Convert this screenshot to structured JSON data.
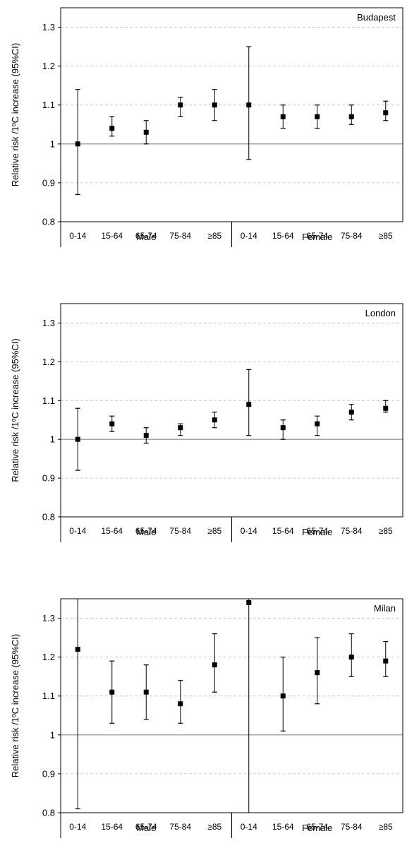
{
  "chart_data": [
    {
      "type": "scatter",
      "title": "Budapest",
      "ylabel": "Relative risk /1ºC increase (95%CI)",
      "ylim": [
        0.8,
        1.35
      ],
      "yticks": [
        "0.8",
        "0.9",
        "1",
        "1.1",
        "1.2",
        "1.3"
      ],
      "grid": true,
      "reference_line": 1,
      "groups": [
        "Male",
        "Female"
      ],
      "categories": [
        "0-14",
        "15-64",
        "65-74",
        "75-84",
        "≥85",
        "0-14",
        "15-64",
        "65-74",
        "75-84",
        "≥85"
      ],
      "values": [
        1.0,
        1.04,
        1.03,
        1.1,
        1.1,
        1.1,
        1.07,
        1.07,
        1.07,
        1.08
      ],
      "ci_low": [
        0.87,
        1.02,
        1.0,
        1.07,
        1.06,
        0.96,
        1.04,
        1.04,
        1.05,
        1.06
      ],
      "ci_high": [
        1.14,
        1.07,
        1.06,
        1.12,
        1.14,
        1.25,
        1.1,
        1.1,
        1.1,
        1.11
      ]
    },
    {
      "type": "scatter",
      "title": "London",
      "ylabel": "Relative risk /1ºC increase (95%CI)",
      "ylim": [
        0.8,
        1.35
      ],
      "yticks": [
        "0.8",
        "0.9",
        "1",
        "1.1",
        "1.2",
        "1.3"
      ],
      "grid": true,
      "reference_line": 1,
      "groups": [
        "Male",
        "Female"
      ],
      "categories": [
        "0-14",
        "15-64",
        "65-74",
        "75-84",
        "≥85",
        "0-14",
        "15-64",
        "65-74",
        "75-84",
        "≥85"
      ],
      "values": [
        1.0,
        1.04,
        1.01,
        1.03,
        1.05,
        1.09,
        1.03,
        1.04,
        1.07,
        1.08
      ],
      "ci_low": [
        0.92,
        1.02,
        0.99,
        1.01,
        1.03,
        1.01,
        1.0,
        1.01,
        1.05,
        1.07
      ],
      "ci_high": [
        1.08,
        1.06,
        1.03,
        1.04,
        1.07,
        1.18,
        1.05,
        1.06,
        1.09,
        1.1
      ]
    },
    {
      "type": "scatter",
      "title": "Milan",
      "ylabel": "Relative risk /1ºC increase (95%CI)",
      "ylim": [
        0.8,
        1.35
      ],
      "yticks": [
        "0.8",
        "0.9",
        "1",
        "1.1",
        "1.2",
        "1.3"
      ],
      "grid": true,
      "reference_line": 1,
      "groups": [
        "Male",
        "Female"
      ],
      "categories": [
        "0-14",
        "15-64",
        "65-74",
        "75-84",
        "≥85",
        "0-14",
        "15-64",
        "65-74",
        "75-84",
        "≥85"
      ],
      "values": [
        1.22,
        1.11,
        1.11,
        1.08,
        1.18,
        1.34,
        1.1,
        1.16,
        1.2,
        1.19
      ],
      "ci_low": [
        0.81,
        1.03,
        1.04,
        1.03,
        1.11,
        0.8,
        1.01,
        1.08,
        1.15,
        1.15
      ],
      "ci_high": [
        1.35,
        1.19,
        1.18,
        1.14,
        1.26,
        1.35,
        1.2,
        1.25,
        1.26,
        1.24
      ]
    }
  ],
  "colors": {
    "marker": "#000000",
    "grid": "#bbbbbb",
    "reference": "#888888",
    "axis": "#000000"
  }
}
